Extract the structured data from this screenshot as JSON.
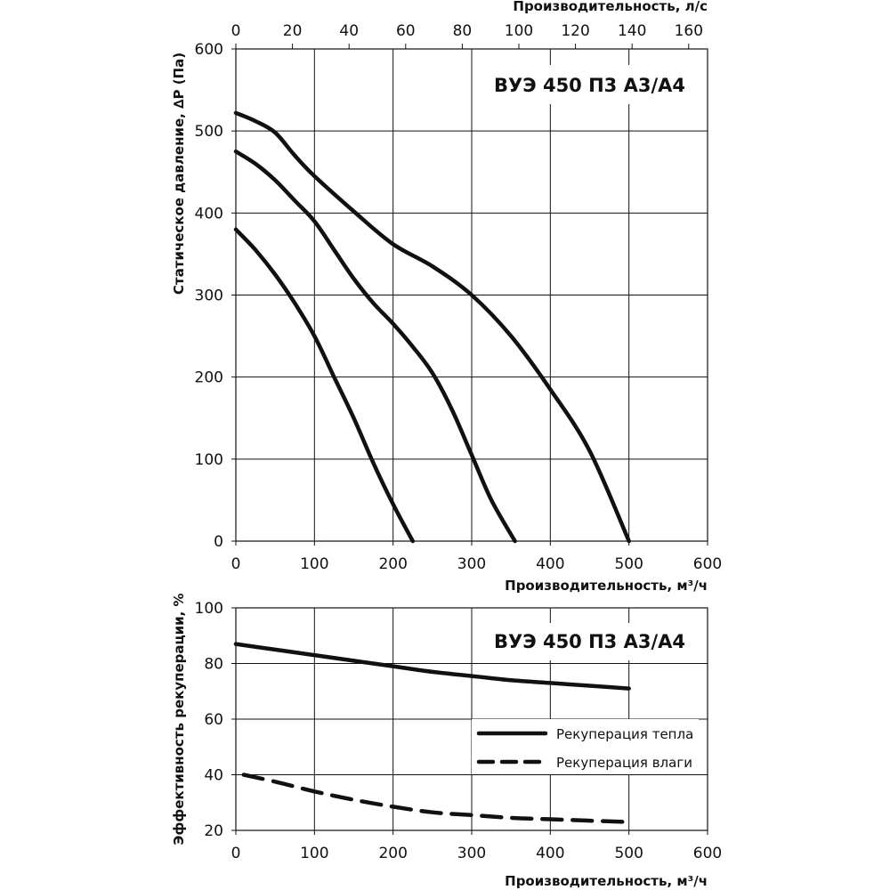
{
  "chart_data": [
    {
      "type": "line",
      "title": "ВУЭ 450 П3 А3/А4",
      "xlabel": "Производительность, м³/ч",
      "x2label": "Производительность, л/с",
      "ylabel": "Статическое давление, ∆P (Па)",
      "xlim": [
        0,
        600
      ],
      "x2lim": [
        0,
        166.67
      ],
      "ylim": [
        0,
        600
      ],
      "xticks": [
        "0",
        "100",
        "200",
        "300",
        "400",
        "500",
        "600"
      ],
      "x2ticks": [
        "0",
        "20",
        "40",
        "60",
        "80",
        "100",
        "120",
        "140",
        "160"
      ],
      "yticks": [
        "0",
        "100",
        "200",
        "300",
        "400",
        "500",
        "600"
      ],
      "grid": true,
      "series": [
        {
          "points": [
            [
              0,
              380
            ],
            [
              25,
              355
            ],
            [
              50,
              325
            ],
            [
              75,
              290
            ],
            [
              100,
              250
            ],
            [
              125,
              200
            ],
            [
              150,
              150
            ],
            [
              175,
              95
            ],
            [
              200,
              45
            ],
            [
              225,
              0
            ]
          ]
        },
        {
          "points": [
            [
              0,
              475
            ],
            [
              25,
              460
            ],
            [
              50,
              440
            ],
            [
              75,
              415
            ],
            [
              100,
              390
            ],
            [
              125,
              355
            ],
            [
              150,
              320
            ],
            [
              175,
              290
            ],
            [
              200,
              265
            ],
            [
              225,
              237
            ],
            [
              250,
              205
            ],
            [
              275,
              160
            ],
            [
              300,
              105
            ],
            [
              325,
              50
            ],
            [
              355,
              0
            ]
          ]
        },
        {
          "points": [
            [
              0,
              522
            ],
            [
              25,
              512
            ],
            [
              50,
              498
            ],
            [
              75,
              470
            ],
            [
              100,
              445
            ],
            [
              150,
              402
            ],
            [
              200,
              362
            ],
            [
              250,
              335
            ],
            [
              300,
              300
            ],
            [
              350,
              250
            ],
            [
              400,
              185
            ],
            [
              450,
              110
            ],
            [
              500,
              0
            ]
          ]
        }
      ]
    },
    {
      "type": "line",
      "title": "ВУЭ 450 П3 А3/А4",
      "xlabel": "Производительность, м³/ч",
      "ylabel": "Эффективность рекуперации, %",
      "xlim": [
        0,
        600
      ],
      "ylim": [
        20,
        100
      ],
      "xticks": [
        "0",
        "100",
        "200",
        "300",
        "400",
        "500",
        "600"
      ],
      "yticks": [
        "20",
        "40",
        "60",
        "80",
        "100"
      ],
      "grid": true,
      "legend": "right-center",
      "series": [
        {
          "name": "Рекуперация тепла",
          "style": "solid",
          "points": [
            [
              0,
              87
            ],
            [
              50,
              85
            ],
            [
              100,
              83
            ],
            [
              150,
              81
            ],
            [
              200,
              79
            ],
            [
              250,
              77
            ],
            [
              300,
              75.5
            ],
            [
              350,
              74
            ],
            [
              400,
              73
            ],
            [
              450,
              72
            ],
            [
              500,
              71
            ]
          ]
        },
        {
          "name": "Рекуперация влаги",
          "style": "dashed",
          "points": [
            [
              10,
              40
            ],
            [
              50,
              37.5
            ],
            [
              100,
              34
            ],
            [
              150,
              31
            ],
            [
              200,
              28.5
            ],
            [
              250,
              26.5
            ],
            [
              300,
              25.5
            ],
            [
              350,
              24.5
            ],
            [
              400,
              24
            ],
            [
              450,
              23.5
            ],
            [
              500,
              23
            ]
          ]
        }
      ]
    }
  ]
}
